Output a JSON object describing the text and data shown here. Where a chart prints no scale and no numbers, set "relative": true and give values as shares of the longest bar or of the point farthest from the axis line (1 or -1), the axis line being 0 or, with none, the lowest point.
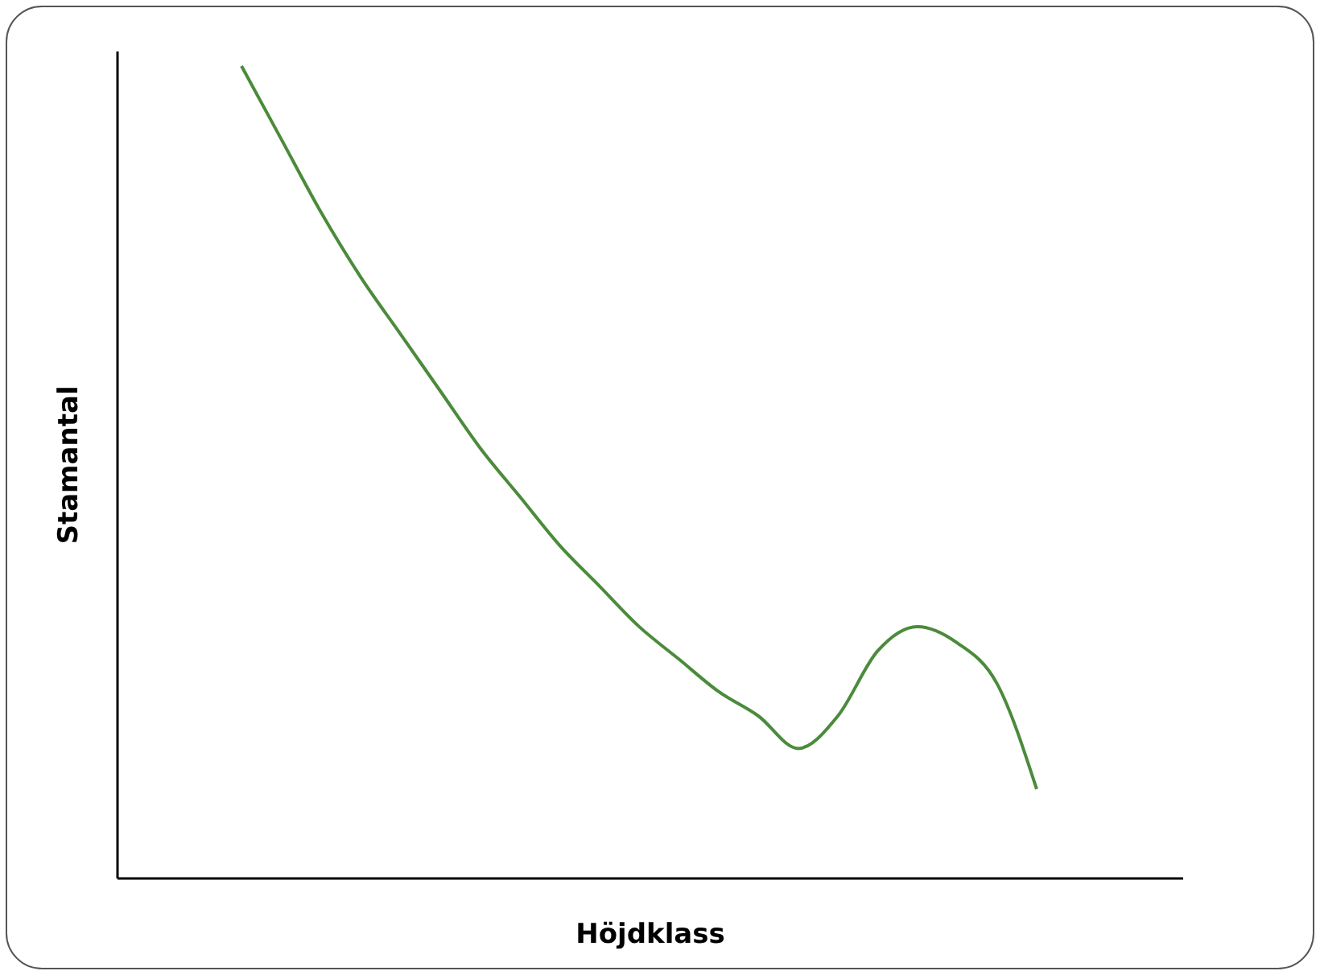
{
  "chart_data": {
    "type": "line",
    "relative": true,
    "xlabel": "Höjdklass",
    "ylabel": "Stamantal",
    "categories": [
      null,
      null,
      null,
      null,
      null,
      null,
      null,
      null,
      null,
      null,
      null,
      null,
      null,
      null,
      null,
      null,
      null,
      null,
      null,
      null,
      null
    ],
    "series": [
      {
        "color": "#4b8b3b",
        "values": [
          1.0,
          0.91,
          0.82,
          0.74,
          0.67,
          0.6,
          0.53,
          0.47,
          0.41,
          0.36,
          0.31,
          0.27,
          0.23,
          0.2,
          0.16,
          0.2,
          0.28,
          0.31,
          0.29,
          0.24,
          0.11
        ]
      }
    ],
    "line_style": "solid"
  }
}
